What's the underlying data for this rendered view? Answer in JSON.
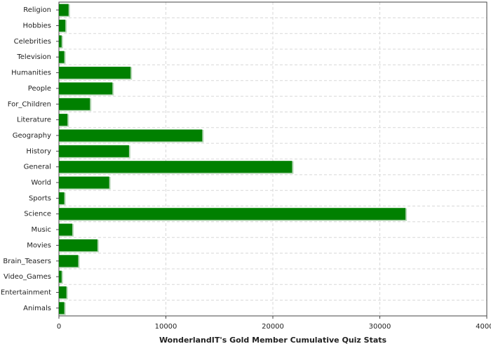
{
  "chart_data": {
    "type": "barh",
    "xlabel": "WonderlandIT's Gold Member Cumulative Quiz Stats",
    "categories": [
      "Religion",
      "Hobbies",
      "Celebrities",
      "Television",
      "Humanities",
      "People",
      "For_Children",
      "Literature",
      "Geography",
      "History",
      "General",
      "World",
      "Sports",
      "Science",
      "Music",
      "Movies",
      "Brain_Teasers",
      "Video_Games",
      "Entertainment",
      "Animals"
    ],
    "values": [
      900,
      600,
      250,
      500,
      6700,
      5000,
      2900,
      800,
      13400,
      6550,
      21800,
      4700,
      500,
      32400,
      1250,
      3600,
      1800,
      250,
      700,
      500
    ],
    "color": "#008000",
    "xlim": [
      0,
      40000
    ],
    "xticks": [
      0,
      10000,
      20000,
      30000,
      40000
    ],
    "grid": true
  }
}
